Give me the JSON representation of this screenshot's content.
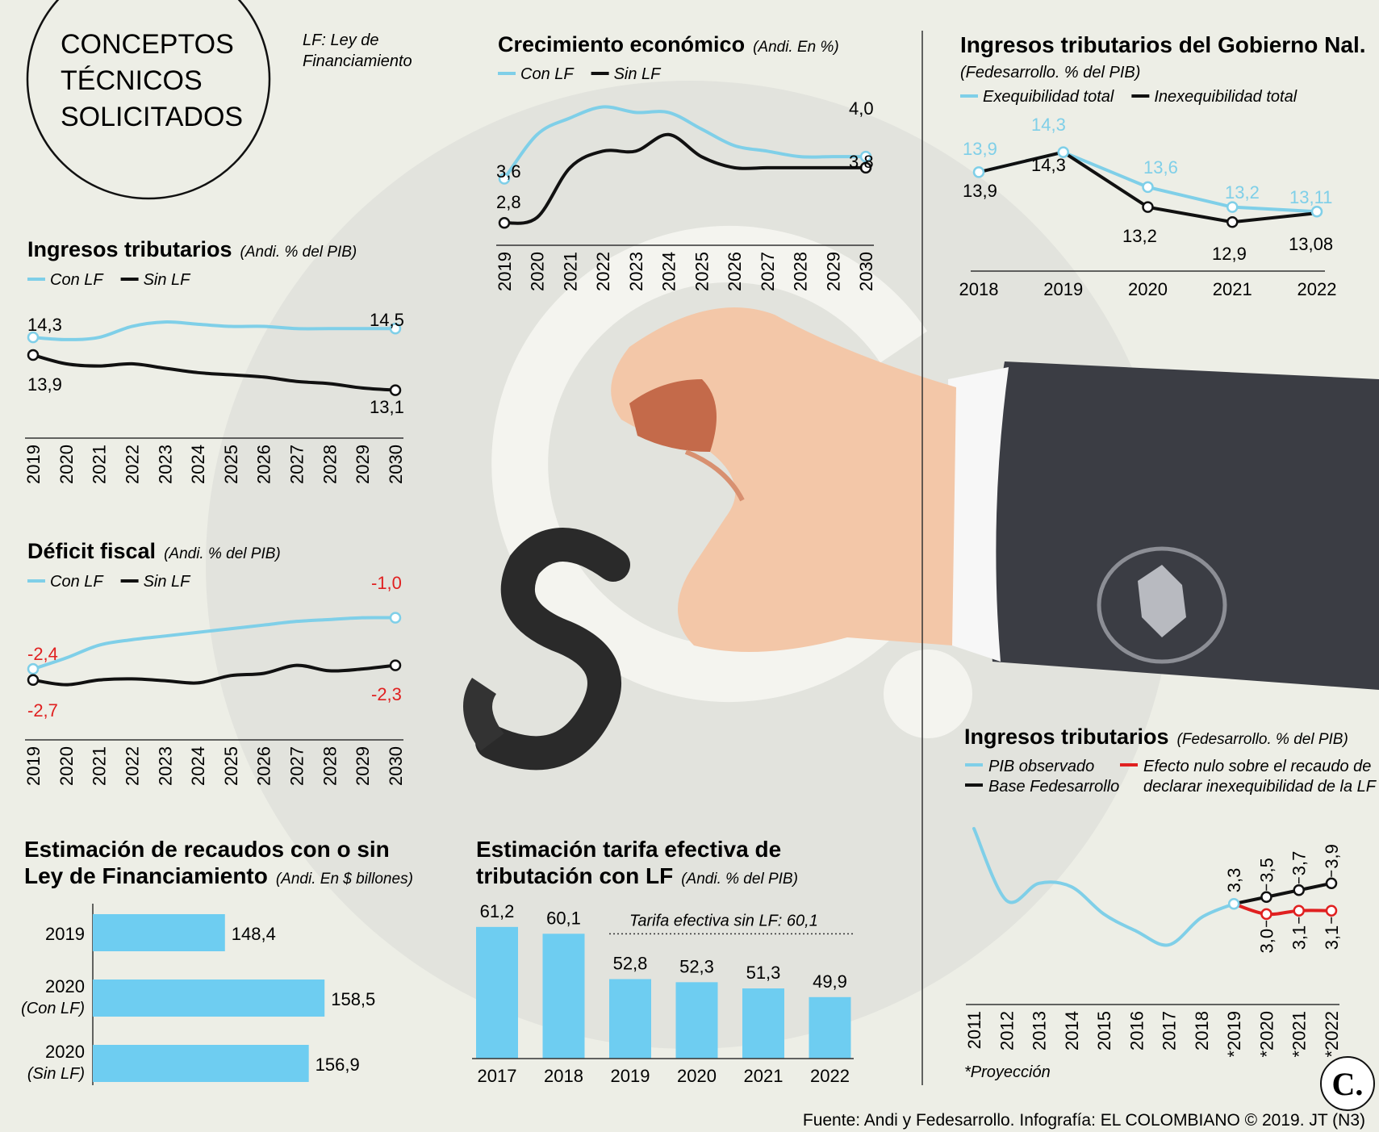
{
  "header": {
    "circle_lines": [
      "CONCEPTOS",
      "TÉCNICOS",
      "SOLICITADOS"
    ],
    "note_lines": [
      "LF: Ley de",
      "Financiamiento"
    ]
  },
  "footer": {
    "source": "Fuente: Andi y Fedesarrollo. Infografía: EL COLOMBIANO © 2019. JT (N3)",
    "logo": "C."
  },
  "colors": {
    "blue": "#7fcfe8",
    "black": "#111111",
    "red": "#e02020",
    "bar": "#6ecdf1"
  },
  "chart_data": [
    {
      "id": "crecimiento",
      "type": "line",
      "title": "Crecimiento económico",
      "subtitle": "(Andi. En %)",
      "x": [
        "2019",
        "2020",
        "2021",
        "2022",
        "2023",
        "2024",
        "2025",
        "2026",
        "2027",
        "2028",
        "2029",
        "2030"
      ],
      "series": [
        {
          "name": "Con LF",
          "color": "#7fcfe8",
          "values": [
            3.6,
            4.4,
            4.7,
            4.9,
            4.8,
            4.8,
            4.5,
            4.2,
            4.1,
            4.0,
            4.0,
            4.0
          ]
        },
        {
          "name": "Sin LF",
          "color": "#111111",
          "values": [
            2.8,
            2.9,
            3.8,
            4.1,
            4.1,
            4.4,
            4.0,
            3.8,
            3.8,
            3.8,
            3.8,
            3.8
          ]
        }
      ],
      "labels": [
        {
          "text": "3,6"
        },
        {
          "text": "2,8"
        },
        {
          "text": "4,0"
        },
        {
          "text": "3,8"
        }
      ],
      "ylim": [
        2.6,
        5.2
      ]
    },
    {
      "id": "ingresos_andi",
      "type": "line",
      "title": "Ingresos tributarios",
      "subtitle": "(Andi. % del PIB)",
      "x": [
        "2019",
        "2020",
        "2021",
        "2022",
        "2023",
        "2024",
        "2025",
        "2026",
        "2027",
        "2028",
        "2029",
        "2030"
      ],
      "series": [
        {
          "name": "Con LF",
          "color": "#7fcfe8",
          "values": [
            14.3,
            14.25,
            14.3,
            14.55,
            14.65,
            14.6,
            14.55,
            14.55,
            14.5,
            14.5,
            14.5,
            14.5
          ]
        },
        {
          "name": "Sin LF",
          "color": "#111111",
          "values": [
            13.9,
            13.7,
            13.65,
            13.7,
            13.6,
            13.5,
            13.45,
            13.4,
            13.3,
            13.25,
            13.15,
            13.1
          ]
        }
      ],
      "labels": [
        {
          "text": "14,3"
        },
        {
          "text": "13,9"
        },
        {
          "text": "14,5"
        },
        {
          "text": "13,1"
        }
      ],
      "ylim": [
        12.8,
        15.0
      ]
    },
    {
      "id": "deficit",
      "type": "line",
      "title": "Déficit fiscal",
      "subtitle": "(Andi. % del PIB)",
      "x": [
        "2019",
        "2020",
        "2021",
        "2022",
        "2023",
        "2024",
        "2025",
        "2026",
        "2027",
        "2028",
        "2029",
        "2030"
      ],
      "series": [
        {
          "name": "Con LF",
          "color": "#7fcfe8",
          "values": [
            -2.4,
            -2.1,
            -1.75,
            -1.6,
            -1.5,
            -1.4,
            -1.3,
            -1.2,
            -1.1,
            -1.05,
            -1.0,
            -1.0
          ]
        },
        {
          "name": "Sin LF",
          "color": "#111111",
          "values": [
            -2.7,
            -2.83,
            -2.7,
            -2.67,
            -2.72,
            -2.78,
            -2.58,
            -2.52,
            -2.3,
            -2.45,
            -2.4,
            -2.3
          ]
        }
      ],
      "labels": [
        {
          "text": "-2,4"
        },
        {
          "text": "-2,7"
        },
        {
          "text": "-1,0"
        },
        {
          "text": "-2,3"
        }
      ],
      "ylim": [
        -3.3,
        -0.7
      ]
    },
    {
      "id": "gobierno",
      "type": "line",
      "title": "Ingresos tributarios del Gobierno Nal.",
      "subtitle": "(Fedesarrollo. % del PIB)",
      "x": [
        "2018",
        "2019",
        "2020",
        "2021",
        "2022"
      ],
      "series": [
        {
          "name": "Exequibilidad total",
          "color": "#7fcfe8",
          "values": [
            13.9,
            14.3,
            13.6,
            13.2,
            13.11
          ],
          "labels": [
            "13,9",
            "14,3",
            "13,6",
            "13,2",
            "13,11"
          ]
        },
        {
          "name": "Inexequibilidad total",
          "color": "#111111",
          "values": [
            13.9,
            14.3,
            13.2,
            12.9,
            13.08
          ],
          "labels": [
            "13,9",
            "14,3",
            "13,2",
            "12,9",
            "13,08"
          ]
        }
      ],
      "ylim": [
        12.5,
        14.6
      ]
    },
    {
      "id": "fedesarrollo",
      "type": "line",
      "title": "Ingresos tributarios",
      "subtitle": "(Fedesarrollo. % del PIB)",
      "x": [
        "2011",
        "2012",
        "2013",
        "2014",
        "2015",
        "2016",
        "2017",
        "2018",
        "*2019",
        "*2020",
        "*2021",
        "*2022"
      ],
      "series": [
        {
          "name": "PIB observado",
          "color": "#7fcfe8",
          "values": [
            5.5,
            3.4,
            3.9,
            3.8,
            3.0,
            2.5,
            2.1,
            2.9,
            3.3,
            null,
            null,
            null
          ]
        },
        {
          "name": "Base Fedesarrollo",
          "color": "#111111",
          "values": [
            null,
            null,
            null,
            null,
            null,
            null,
            null,
            null,
            3.3,
            3.5,
            3.7,
            3.9
          ],
          "labels": [
            "3,3",
            "3,5",
            "3,7",
            "3,9"
          ]
        },
        {
          "name": "Efecto nulo sobre el recaudo de declarar inexequibilidad de la LF",
          "color": "#e02020",
          "values": [
            null,
            null,
            null,
            null,
            null,
            null,
            null,
            null,
            3.3,
            3.0,
            3.1,
            3.1
          ],
          "labels": [
            "3,0",
            "3,1",
            "3,1"
          ]
        }
      ],
      "legend": [
        "PIB observado",
        "Base Fedesarrollo",
        "Efecto nulo sobre el recaudo de",
        "declarar inexequibilidad de la LF"
      ],
      "note": "*Proyección",
      "ylim": [
        1.3,
        5.9
      ]
    },
    {
      "id": "recaudos",
      "type": "bar",
      "orientation": "horizontal",
      "title_lines": [
        "Estimación de recaudos con o sin",
        "Ley de Financiamiento"
      ],
      "subtitle": "(Andi. En $ billones)",
      "categories": [
        {
          "main": "2019",
          "sub": ""
        },
        {
          "main": "2020",
          "sub": "(Con LF)"
        },
        {
          "main": "2020",
          "sub": "(Sin LF)"
        }
      ],
      "values": [
        148.4,
        158.5,
        156.9
      ],
      "value_labels": [
        "148,4",
        "158,5",
        "156,9"
      ],
      "xlim": [
        135,
        162
      ]
    },
    {
      "id": "tarifa",
      "type": "bar",
      "title_lines": [
        "Estimación tarifa efectiva de",
        "tributación con LF"
      ],
      "subtitle": "(Andi. % del PIB)",
      "categories": [
        "2017",
        "2018",
        "2019",
        "2020",
        "2021",
        "2022"
      ],
      "values": [
        61.2,
        60.1,
        52.8,
        52.3,
        51.3,
        49.9
      ],
      "value_labels": [
        "61,2",
        "60,1",
        "52,8",
        "52,3",
        "51,3",
        "49,9"
      ],
      "reference": {
        "label": "Tarifa efectiva sin LF: 60,1",
        "value": 60.1
      },
      "ylim": [
        40,
        63
      ]
    }
  ]
}
